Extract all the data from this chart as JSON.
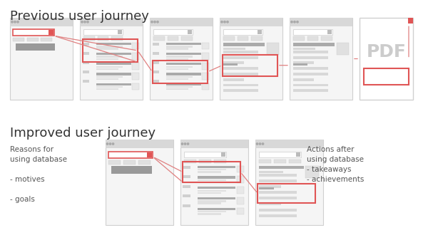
{
  "bg_color": "#ffffff",
  "title1": "Previous user journey",
  "title2": "Improved user journey",
  "title_fontsize": 13,
  "title_color": "#333333",
  "screen_color": "#f5f5f5",
  "screen_border": "#d0d0d0",
  "bar_color": "#cccccc",
  "bar_dark": "#aaaaaa",
  "bar_light": "#e0e0e0",
  "red_color": "#e05555",
  "red_light": "#e8a0a0",
  "arrow_color": "#e08080",
  "pdf_text_color": "#c0c0c0",
  "text_color": "#555555",
  "left_text": "Reasons for\nusing database\n\n- motives\n\n- goals",
  "right_text": "Actions after\nusing database\n- takeaways\n- achievements",
  "prev_screens": 5,
  "impr_screens": 3
}
